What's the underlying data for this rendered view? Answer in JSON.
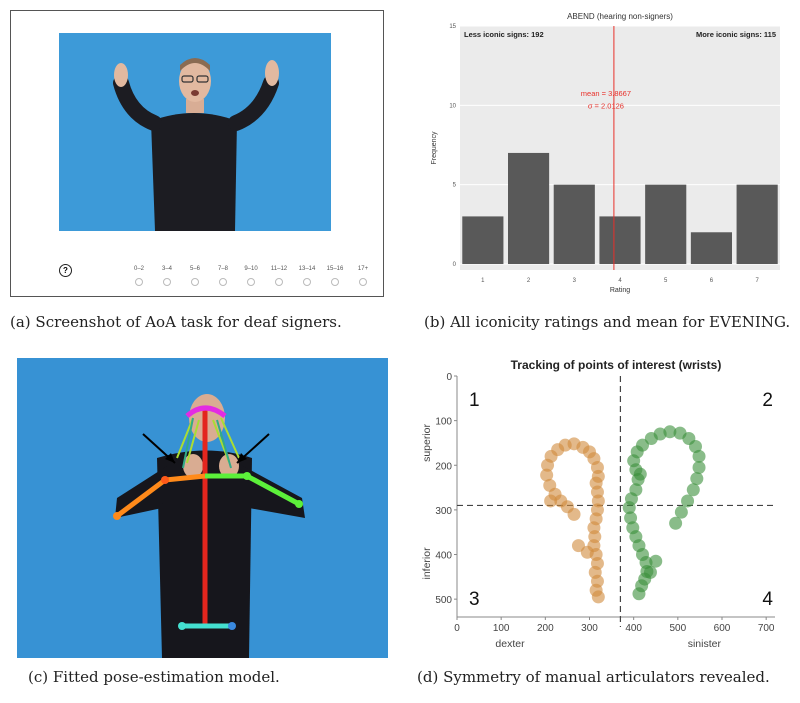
{
  "panels": {
    "a": {
      "caption": "(a) Screenshot of AoA task for deaf signers.",
      "unknown_label": "?",
      "age_options": [
        "0–2",
        "3–4",
        "5–6",
        "7–8",
        "9–10",
        "11–12",
        "13–14",
        "15–16",
        "17+"
      ]
    },
    "b": {
      "caption": "(b) All iconicity ratings and mean for EVENING."
    },
    "c": {
      "caption": "(c) Fitted pose-estimation model."
    },
    "d": {
      "caption": "(d) Symmetry of manual articulators revealed."
    }
  },
  "chart_data": [
    {
      "type": "bar",
      "title": "ABEND  (hearing non-signers)",
      "xlabel": "Rating",
      "ylabel": "Frequency",
      "categories": [
        "1",
        "2",
        "3",
        "4",
        "5",
        "6",
        "7"
      ],
      "values": [
        3,
        7,
        5,
        3,
        5,
        2,
        5
      ],
      "ylim": [
        0,
        15
      ],
      "yticks": [
        "0",
        "5",
        "10",
        "15"
      ],
      "mean": 3.8667,
      "mean_label": "mean =  3.8667",
      "sd_label": "σ =  2.0126",
      "left_annotation": "Less iconic signs:  192",
      "right_annotation": "More iconic signs:  115",
      "colors": {
        "bar": "#595959",
        "panel": "#ebebeb",
        "mean_line": "#e8302a"
      }
    },
    {
      "type": "scatter",
      "title": "Tracking of points of interest (wrists)",
      "xlabel_left": "dexter",
      "xlabel_right": "sinister",
      "ylabel_top": "superior",
      "ylabel_bottom": "inferior",
      "xlim": [
        0,
        720
      ],
      "ylim": [
        0,
        540
      ],
      "y_inverted": true,
      "xticks": [
        "0",
        "100",
        "200",
        "300",
        "400",
        "500",
        "600",
        "700"
      ],
      "yticks": [
        "0",
        "100",
        "200",
        "300",
        "400",
        "500"
      ],
      "vline_x": 370,
      "hline_y": 290,
      "quadrants": [
        "1",
        "2",
        "3",
        "4"
      ],
      "series": [
        {
          "color": "#d08a3c",
          "points": [
            [
              320,
              495
            ],
            [
              315,
              480
            ],
            [
              318,
              460
            ],
            [
              313,
              440
            ],
            [
              318,
              420
            ],
            [
              315,
              400
            ],
            [
              310,
              380
            ],
            [
              312,
              360
            ],
            [
              310,
              340
            ],
            [
              315,
              320
            ],
            [
              318,
              300
            ],
            [
              320,
              280
            ],
            [
              318,
              260
            ],
            [
              315,
              240
            ],
            [
              320,
              225
            ],
            [
              318,
              205
            ],
            [
              310,
              185
            ],
            [
              300,
              170
            ],
            [
              285,
              160
            ],
            [
              265,
              152
            ],
            [
              245,
              155
            ],
            [
              228,
              165
            ],
            [
              213,
              180
            ],
            [
              205,
              200
            ],
            [
              203,
              222
            ],
            [
              210,
              245
            ],
            [
              222,
              265
            ],
            [
              235,
              280
            ],
            [
              250,
              293
            ],
            [
              265,
              310
            ],
            [
              212,
              280
            ],
            [
              275,
              380
            ],
            [
              295,
              395
            ]
          ]
        },
        {
          "color": "#3b8f3a",
          "points": [
            [
              412,
              488
            ],
            [
              418,
              470
            ],
            [
              425,
              455
            ],
            [
              430,
              438
            ],
            [
              428,
              418
            ],
            [
              420,
              400
            ],
            [
              412,
              380
            ],
            [
              405,
              360
            ],
            [
              398,
              340
            ],
            [
              393,
              318
            ],
            [
              390,
              295
            ],
            [
              395,
              275
            ],
            [
              405,
              255
            ],
            [
              410,
              232
            ],
            [
              405,
              210
            ],
            [
              400,
              190
            ],
            [
              408,
              170
            ],
            [
              420,
              155
            ],
            [
              440,
              140
            ],
            [
              460,
              130
            ],
            [
              482,
              125
            ],
            [
              505,
              128
            ],
            [
              525,
              140
            ],
            [
              540,
              158
            ],
            [
              548,
              180
            ],
            [
              548,
              205
            ],
            [
              543,
              230
            ],
            [
              535,
              255
            ],
            [
              522,
              280
            ],
            [
              508,
              305
            ],
            [
              495,
              330
            ],
            [
              450,
              415
            ],
            [
              438,
              440
            ],
            [
              415,
              220
            ]
          ]
        }
      ]
    }
  ]
}
